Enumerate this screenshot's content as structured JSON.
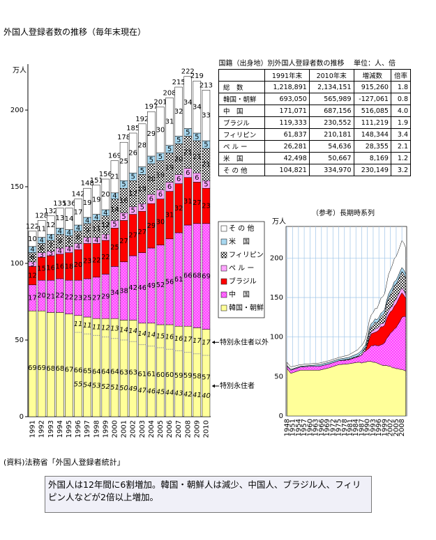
{
  "title": "外国人登録者数の推移（毎年末現在）",
  "chart_data": [
    {
      "type": "bar",
      "stacked": true,
      "unit_label": "万人",
      "categories": [
        "1991",
        "1992",
        "1993",
        "1994",
        "1995",
        "1996",
        "1997",
        "1998",
        "1999",
        "2000",
        "2001",
        "2002",
        "2003",
        "2004",
        "2005",
        "2006",
        "2007",
        "2008",
        "2009",
        "2010"
      ],
      "series": [
        {
          "name": "韓国・朝鮮",
          "color": "#ffff99",
          "pattern": "none",
          "values": [
            69,
            69,
            68,
            68,
            67,
            66,
            65,
            64,
            64,
            64,
            63,
            63,
            61,
            61,
            60,
            60,
            59,
            59,
            58,
            57
          ]
        },
        {
          "name": "中　国",
          "color": "#ff44ff",
          "pattern": "dots",
          "values": [
            17,
            20,
            21,
            22,
            22,
            23,
            25,
            27,
            29,
            34,
            38,
            42,
            46,
            49,
            52,
            56,
            61,
            66,
            68,
            69
          ]
        },
        {
          "name": "ブラジル",
          "color": "#ff0000",
          "pattern": "none",
          "values": [
            12,
            15,
            16,
            16,
            18,
            20,
            23,
            22,
            22,
            25,
            27,
            27,
            27,
            29,
            30,
            31,
            32,
            31,
            27,
            23
          ]
        },
        {
          "name": "ペ ル ー",
          "color": "#ff99ff",
          "pattern": "dots",
          "values": [
            3,
            3,
            3,
            4,
            4,
            4,
            4,
            4,
            4,
            5,
            5,
            5,
            5,
            6,
            6,
            6,
            6,
            6,
            6,
            5
          ]
        },
        {
          "name": "フィリピン",
          "color": "#333333",
          "pattern": "check",
          "values": [
            6,
            6,
            7,
            9,
            7,
            8,
            9,
            11,
            12,
            14,
            16,
            17,
            19,
            20,
            19,
            19,
            20,
            21,
            21,
            21
          ]
        },
        {
          "name": "米　国",
          "color": "#a8d8f0",
          "pattern": "none",
          "values": [
            4,
            4,
            4,
            4,
            4,
            4,
            4,
            4,
            4,
            4,
            5,
            5,
            5,
            5,
            5,
            5,
            5,
            5,
            5,
            5
          ]
        },
        {
          "name": "そ の 他",
          "color": "#ffffff",
          "pattern": "none",
          "values": [
            10,
            11,
            12,
            13,
            14,
            17,
            19,
            19,
            20,
            21,
            25,
            26,
            28,
            29,
            30,
            31,
            32,
            34,
            34,
            33
          ]
        }
      ],
      "totals": [
        122,
        128,
        132,
        135,
        136,
        142,
        148,
        151,
        156,
        169,
        178,
        185,
        192,
        197,
        201,
        208,
        215,
        222,
        219,
        213
      ],
      "korea_split": {
        "upper_label": "特別永住者以外",
        "upper_values": [
          null,
          null,
          null,
          null,
          null,
          11,
          11,
          11,
          12,
          13,
          14,
          14,
          14,
          14,
          15,
          16,
          16,
          17,
          17,
          17
        ],
        "lower_label": "特別永住者",
        "lower_values": [
          null,
          null,
          null,
          null,
          null,
          55,
          54,
          53,
          52,
          51,
          50,
          49,
          47,
          46,
          45,
          44,
          43,
          42,
          41,
          40
        ]
      },
      "ylim": [
        0,
        230
      ],
      "yticks": [
        0,
        50,
        100,
        150,
        200
      ]
    },
    {
      "type": "area",
      "stacked": true,
      "title": "（参考）長期時系列",
      "unit_label": "万人",
      "x": [
        1948,
        1950,
        1955,
        1960,
        1965,
        1970,
        1975,
        1980,
        1985,
        1986,
        1987,
        1988,
        1989,
        1990,
        1991,
        1992,
        1993,
        1994,
        1995,
        1996,
        1997,
        1998,
        1999,
        2000,
        2001,
        2002,
        2003,
        2004,
        2005,
        2006,
        2007,
        2008,
        2009,
        2010
      ],
      "series": [
        {
          "color": "#ffff99",
          "pattern": "none",
          "values": [
            60,
            54,
            58,
            58,
            58,
            61,
            65,
            66,
            68,
            68,
            67,
            68,
            68,
            69,
            69,
            69,
            68,
            68,
            67,
            66,
            65,
            64,
            64,
            64,
            63,
            63,
            61,
            61,
            60,
            60,
            59,
            59,
            58,
            57
          ]
        },
        {
          "color": "#ff44ff",
          "pattern": "dots",
          "values": [
            3,
            4,
            4,
            5,
            5,
            5,
            5,
            5,
            7,
            8,
            10,
            13,
            14,
            15,
            17,
            20,
            21,
            22,
            22,
            23,
            25,
            27,
            29,
            34,
            38,
            42,
            46,
            49,
            52,
            56,
            61,
            66,
            68,
            69
          ]
        },
        {
          "color": "#ff0000",
          "pattern": "none",
          "values": [
            0,
            0,
            0,
            0,
            0,
            0,
            0,
            0,
            0,
            0,
            0,
            0,
            1,
            6,
            12,
            15,
            16,
            16,
            18,
            20,
            23,
            22,
            22,
            25,
            27,
            27,
            27,
            29,
            30,
            31,
            32,
            31,
            27,
            23
          ]
        },
        {
          "color": "#ff99ff",
          "pattern": "dots",
          "values": [
            0,
            0,
            0,
            0,
            0,
            0,
            0,
            0,
            0,
            0,
            0,
            0,
            0,
            1,
            3,
            3,
            3,
            4,
            4,
            4,
            4,
            4,
            4,
            5,
            5,
            5,
            5,
            6,
            6,
            6,
            6,
            6,
            6,
            5
          ]
        },
        {
          "color": "#333333",
          "pattern": "check",
          "values": [
            0,
            0,
            0,
            0,
            0,
            0,
            0,
            1,
            1,
            2,
            3,
            3,
            4,
            5,
            6,
            6,
            7,
            9,
            7,
            8,
            9,
            11,
            12,
            14,
            16,
            17,
            19,
            20,
            19,
            19,
            20,
            21,
            21,
            21
          ]
        },
        {
          "color": "#a8d8f0",
          "pattern": "none",
          "values": [
            1,
            1,
            1,
            1,
            2,
            2,
            2,
            2,
            3,
            3,
            3,
            3,
            3,
            4,
            4,
            4,
            4,
            4,
            4,
            4,
            4,
            4,
            4,
            4,
            5,
            5,
            5,
            5,
            5,
            5,
            5,
            5,
            5,
            5
          ]
        },
        {
          "color": "#ffffff",
          "pattern": "none",
          "values": [
            4,
            3,
            2,
            2,
            2,
            2,
            2,
            3,
            5,
            6,
            6,
            6,
            8,
            8,
            10,
            11,
            12,
            13,
            14,
            17,
            19,
            19,
            20,
            21,
            25,
            26,
            28,
            29,
            30,
            31,
            32,
            34,
            34,
            33
          ]
        }
      ],
      "xlim": [
        1947.5,
        2010.5
      ],
      "xticks": [
        1948,
        1951,
        1954,
        1957,
        1960,
        1963,
        1966,
        1969,
        1972,
        1975,
        1978,
        1981,
        1984,
        1987,
        1990,
        1993,
        1996,
        1999,
        2002,
        2005,
        2008
      ],
      "ylim": [
        0,
        240
      ],
      "yticks": [
        0,
        50,
        100,
        150,
        200
      ],
      "grid": true
    }
  ],
  "table": {
    "title": "国籍（出身地）別外国人登録者数の推移",
    "unit": "単位：人、倍",
    "header": [
      "1991年末",
      "2010年末",
      "増減数",
      "倍率"
    ],
    "rows": [
      [
        "総　数",
        "1,218,891",
        "2,134,151",
        "915,260",
        "1.8"
      ],
      [
        "韓国・朝鮮",
        "693,050",
        "565,989",
        "-127,061",
        "0.8"
      ],
      [
        "中　国",
        "171,071",
        "687,156",
        "516,085",
        "4.0"
      ],
      [
        "ブラジル",
        "119,333",
        "230,552",
        "111,219",
        "1.9"
      ],
      [
        "フィリピン",
        "61,837",
        "210,181",
        "148,344",
        "3.4"
      ],
      [
        "ペ ル ー",
        "26,281",
        "54,636",
        "28,355",
        "2.1"
      ],
      [
        "米　国",
        "42,498",
        "50,667",
        "8,169",
        "1.2"
      ],
      [
        "そ の 他",
        "104,821",
        "334,970",
        "230,149",
        "3.2"
      ]
    ]
  },
  "source": "(資料)法務省「外国人登録者統計」",
  "note": "外国人は12年間に6割増加。韓国・朝鮮人は減少、中国人、ブラジル人、フィリピン人などが2倍以上増加。"
}
